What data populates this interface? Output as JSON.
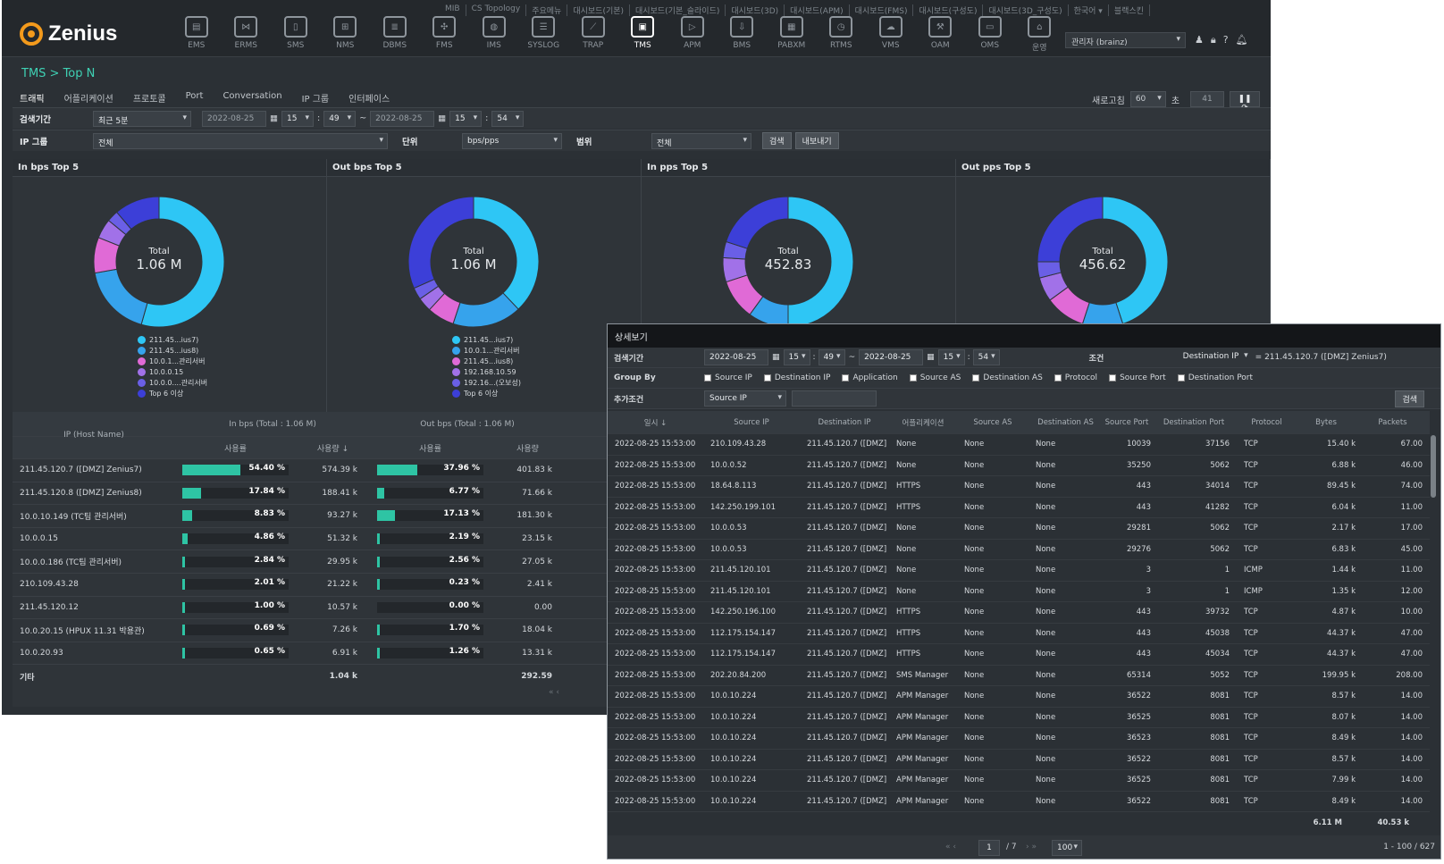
{
  "brand": {
    "name": "Zenius"
  },
  "top_links": [
    "MIB",
    "CS Topology",
    "주요메뉴",
    "대시보드(기본)",
    "대시보드(기본_슬라이드)",
    "대시보드(3D)",
    "대시보드(APM)",
    "대시보드(FMS)",
    "대시보드(구성도)",
    "대시보드(3D_구성도)",
    "한국어 ▾",
    "블랙스킨"
  ],
  "modules": [
    {
      "label": "EMS",
      "icon": "ems-icon",
      "glyph": "▤"
    },
    {
      "label": "ERMS",
      "icon": "erms-icon",
      "glyph": "⋈"
    },
    {
      "label": "SMS",
      "icon": "sms-icon",
      "glyph": "▯"
    },
    {
      "label": "NMS",
      "icon": "nms-icon",
      "glyph": "⊞"
    },
    {
      "label": "DBMS",
      "icon": "dbms-icon",
      "glyph": "≣"
    },
    {
      "label": "FMS",
      "icon": "fms-icon",
      "glyph": "✣"
    },
    {
      "label": "IMS",
      "icon": "ims-icon",
      "glyph": "◍"
    },
    {
      "label": "SYSLOG",
      "icon": "syslog-icon",
      "glyph": "☰"
    },
    {
      "label": "TRAP",
      "icon": "trap-icon",
      "glyph": "⟋"
    },
    {
      "label": "TMS",
      "icon": "tms-icon",
      "glyph": "▣",
      "active": true
    },
    {
      "label": "APM",
      "icon": "apm-icon",
      "glyph": "▷"
    },
    {
      "label": "BMS",
      "icon": "bms-icon",
      "glyph": "⇩"
    },
    {
      "label": "PABXM",
      "icon": "pabxm-icon",
      "glyph": "▦"
    },
    {
      "label": "RTMS",
      "icon": "rtms-icon",
      "glyph": "◷"
    },
    {
      "label": "VMS",
      "icon": "vms-icon",
      "glyph": "☁"
    },
    {
      "label": "OAM",
      "icon": "oam-icon",
      "glyph": "⚒"
    },
    {
      "label": "OMS",
      "icon": "oms-icon",
      "glyph": "▭"
    },
    {
      "label": "운영",
      "icon": "ops-icon",
      "glyph": "⌂"
    }
  ],
  "user": {
    "label": "관리자 (brainz)"
  },
  "breadcrumb": "TMS > Top N",
  "tabs": [
    "트래픽",
    "어플리케이션",
    "프로토콜",
    "Port",
    "Conversation",
    "IP 그룹",
    "인터페이스"
  ],
  "refresh": {
    "label": "새로고침",
    "value": "60",
    "unit": "초",
    "count": "41"
  },
  "filter1": {
    "label": "검색기간",
    "period": "최근 5분",
    "date1": "2022-08-25",
    "h1": "15",
    "m1": "49",
    "date2": "2022-08-25",
    "h2": "15",
    "m2": "54"
  },
  "filter2": {
    "label": "IP 그룹",
    "group": "전체",
    "unit_label": "단위",
    "unit": "bps/pps",
    "range_label": "범위",
    "range": "전체",
    "search": "검색",
    "export": "내보내기"
  },
  "panels": [
    {
      "title": "In bps Top 5",
      "total_label": "Total",
      "total": "1.06 M",
      "legend": [
        "211.45...ius7)",
        "211.45...ius8)",
        "10.0.1...관리서버",
        "10.0.0.15",
        "10.0.0....관리서버",
        "Top 6 이상"
      ],
      "slices": [
        54.4,
        17.84,
        8.83,
        4.86,
        2.84,
        11.23
      ]
    },
    {
      "title": "Out bps Top 5",
      "total_label": "Total",
      "total": "1.06 M",
      "legend": [
        "211.45...ius7)",
        "10.0.1...관리서버",
        "211.45...ius8)",
        "192.168.10.59",
        "192.16...(오보성)",
        "Top 6 이상"
      ],
      "slices": [
        37.96,
        17.13,
        6.77,
        3.5,
        3.0,
        31.64
      ]
    },
    {
      "title": "In pps Top 5",
      "total_label": "Total",
      "total": "452.83",
      "legend": [],
      "slices": [
        50,
        10,
        10,
        6,
        4,
        20
      ]
    },
    {
      "title": "Out pps Top 5",
      "total_label": "Total",
      "total": "456.62",
      "legend": [],
      "slices": [
        45,
        10,
        10,
        6,
        4,
        25
      ]
    }
  ],
  "legend_colors": [
    "#2ec6f5",
    "#36a3ec",
    "#e06ad6",
    "#a171e8",
    "#6a5fe6",
    "#3c3fd8"
  ],
  "table": {
    "col_host": "IP (Host Name)",
    "group_in": "In bps (Total : 1.06 M)",
    "group_out": "Out bps (Total : 1.06 M)",
    "sub_rate": "사용률",
    "sub_use": "사용량 ↓",
    "sub_use2": "사용량",
    "rows": [
      {
        "host": "211.45.120.7 ([DMZ] Zenius7)",
        "in_pct": "54.40 %",
        "in_val": "574.39 k",
        "out_pct": "37.96 %",
        "out_val": "401.83 k",
        "in_f": 0.544,
        "out_f": 0.3796
      },
      {
        "host": "211.45.120.8 ([DMZ] Zenius8)",
        "in_pct": "17.84 %",
        "in_val": "188.41 k",
        "out_pct": "6.77 %",
        "out_val": "71.66 k",
        "in_f": 0.1784,
        "out_f": 0.0677
      },
      {
        "host": "10.0.10.149 (TC팀 관리서버)",
        "in_pct": "8.83 %",
        "in_val": "93.27 k",
        "out_pct": "17.13 %",
        "out_val": "181.30 k",
        "in_f": 0.0883,
        "out_f": 0.1713
      },
      {
        "host": "10.0.0.15",
        "in_pct": "4.86 %",
        "in_val": "51.32 k",
        "out_pct": "2.19 %",
        "out_val": "23.15 k",
        "in_f": 0.0486,
        "out_f": 0.0219
      },
      {
        "host": "10.0.0.186 (TC팀 관리서버)",
        "in_pct": "2.84 %",
        "in_val": "29.95 k",
        "out_pct": "2.56 %",
        "out_val": "27.05 k",
        "in_f": 0.0284,
        "out_f": 0.0256
      },
      {
        "host": "210.109.43.28",
        "in_pct": "2.01 %",
        "in_val": "21.22 k",
        "out_pct": "0.23 %",
        "out_val": "2.41 k",
        "in_f": 0.0201,
        "out_f": 0.0023
      },
      {
        "host": "211.45.120.12",
        "in_pct": "1.00 %",
        "in_val": "10.57 k",
        "out_pct": "0.00 %",
        "out_val": "0.00",
        "in_f": 0.01,
        "out_f": 0
      },
      {
        "host": "10.0.20.15 (HPUX 11.31 박용관)",
        "in_pct": "0.69 %",
        "in_val": "7.26 k",
        "out_pct": "1.70 %",
        "out_val": "18.04 k",
        "in_f": 0.0069,
        "out_f": 0.017
      },
      {
        "host": "10.0.20.93",
        "in_pct": "0.65 %",
        "in_val": "6.91 k",
        "out_pct": "1.26 %",
        "out_val": "13.31 k",
        "in_f": 0.0065,
        "out_f": 0.0126
      }
    ],
    "etc_label": "기타",
    "etc_in": "1.04 k",
    "etc_out": "292.59"
  },
  "dialog": {
    "title": "상세보기",
    "period_label": "검색기간",
    "date1": "2022-08-25",
    "h1": "15",
    "m1": "49",
    "date2": "2022-08-25",
    "h2": "15",
    "m2": "54",
    "cond_label": "조건",
    "cond_sel": "Destination IP",
    "cond_val": "= 211.45.120.7 ([DMZ] Zenius7)",
    "groupby_label": "Group By",
    "groupby": [
      "Source IP",
      "Destination IP",
      "Application",
      "Source AS",
      "Destination AS",
      "Protocol",
      "Source Port",
      "Destination Port"
    ],
    "extra_label": "추가조건",
    "extra_sel": "Source IP",
    "search": "검색",
    "headers": [
      "일시 ↓",
      "Source IP",
      "Destination IP",
      "어플리케이션",
      "Source AS",
      "Destination AS",
      "Source Port",
      "Destination Port",
      "Protocol",
      "Bytes",
      "Packets"
    ],
    "rows": [
      [
        "2022-08-25 15:53:00",
        "210.109.43.28",
        "211.45.120.7 ([DMZ] Z",
        "None",
        "None",
        "None",
        "10039",
        "37156",
        "TCP",
        "15.40 k",
        "67.00"
      ],
      [
        "2022-08-25 15:53:00",
        "10.0.0.52",
        "211.45.120.7 ([DMZ] Z",
        "None",
        "None",
        "None",
        "35250",
        "5062",
        "TCP",
        "6.88 k",
        "46.00"
      ],
      [
        "2022-08-25 15:53:00",
        "18.64.8.113",
        "211.45.120.7 ([DMZ] Z",
        "HTTPS",
        "None",
        "None",
        "443",
        "34014",
        "TCP",
        "89.45 k",
        "74.00"
      ],
      [
        "2022-08-25 15:53:00",
        "142.250.199.101",
        "211.45.120.7 ([DMZ] Z",
        "HTTPS",
        "None",
        "None",
        "443",
        "41282",
        "TCP",
        "6.04 k",
        "11.00"
      ],
      [
        "2022-08-25 15:53:00",
        "10.0.0.53",
        "211.45.120.7 ([DMZ] Z",
        "None",
        "None",
        "None",
        "29281",
        "5062",
        "TCP",
        "2.17 k",
        "17.00"
      ],
      [
        "2022-08-25 15:53:00",
        "10.0.0.53",
        "211.45.120.7 ([DMZ] Z",
        "None",
        "None",
        "None",
        "29276",
        "5062",
        "TCP",
        "6.83 k",
        "45.00"
      ],
      [
        "2022-08-25 15:53:00",
        "211.45.120.101",
        "211.45.120.7 ([DMZ] Z",
        "None",
        "None",
        "None",
        "3",
        "1",
        "ICMP",
        "1.44 k",
        "11.00"
      ],
      [
        "2022-08-25 15:53:00",
        "211.45.120.101",
        "211.45.120.7 ([DMZ] Z",
        "None",
        "None",
        "None",
        "3",
        "1",
        "ICMP",
        "1.35 k",
        "12.00"
      ],
      [
        "2022-08-25 15:53:00",
        "142.250.196.100",
        "211.45.120.7 ([DMZ] Z",
        "HTTPS",
        "None",
        "None",
        "443",
        "39732",
        "TCP",
        "4.87 k",
        "10.00"
      ],
      [
        "2022-08-25 15:53:00",
        "112.175.154.147",
        "211.45.120.7 ([DMZ] Z",
        "HTTPS",
        "None",
        "None",
        "443",
        "45038",
        "TCP",
        "44.37 k",
        "47.00"
      ],
      [
        "2022-08-25 15:53:00",
        "112.175.154.147",
        "211.45.120.7 ([DMZ] Z",
        "HTTPS",
        "None",
        "None",
        "443",
        "45034",
        "TCP",
        "44.37 k",
        "47.00"
      ],
      [
        "2022-08-25 15:53:00",
        "202.20.84.200",
        "211.45.120.7 ([DMZ] Z",
        "SMS Manager",
        "None",
        "None",
        "65314",
        "5052",
        "TCP",
        "199.95 k",
        "208.00"
      ],
      [
        "2022-08-25 15:53:00",
        "10.0.10.224",
        "211.45.120.7 ([DMZ] Z",
        "APM Manager",
        "None",
        "None",
        "36522",
        "8081",
        "TCP",
        "8.57 k",
        "14.00"
      ],
      [
        "2022-08-25 15:53:00",
        "10.0.10.224",
        "211.45.120.7 ([DMZ] Z",
        "APM Manager",
        "None",
        "None",
        "36525",
        "8081",
        "TCP",
        "8.07 k",
        "14.00"
      ],
      [
        "2022-08-25 15:53:00",
        "10.0.10.224",
        "211.45.120.7 ([DMZ] Z",
        "APM Manager",
        "None",
        "None",
        "36523",
        "8081",
        "TCP",
        "8.49 k",
        "14.00"
      ],
      [
        "2022-08-25 15:53:00",
        "10.0.10.224",
        "211.45.120.7 ([DMZ] Z",
        "APM Manager",
        "None",
        "None",
        "36522",
        "8081",
        "TCP",
        "8.57 k",
        "14.00"
      ],
      [
        "2022-08-25 15:53:00",
        "10.0.10.224",
        "211.45.120.7 ([DMZ] Z",
        "APM Manager",
        "None",
        "None",
        "36525",
        "8081",
        "TCP",
        "7.99 k",
        "14.00"
      ],
      [
        "2022-08-25 15:53:00",
        "10.0.10.224",
        "211.45.120.7 ([DMZ] Z",
        "APM Manager",
        "None",
        "None",
        "36522",
        "8081",
        "TCP",
        "8.49 k",
        "14.00"
      ]
    ],
    "sum_bytes": "6.11 M",
    "sum_packets": "40.53 k",
    "page_current": "1",
    "page_total": "/ 7",
    "page_size": "100",
    "range_info": "1 - 100 / 627"
  }
}
